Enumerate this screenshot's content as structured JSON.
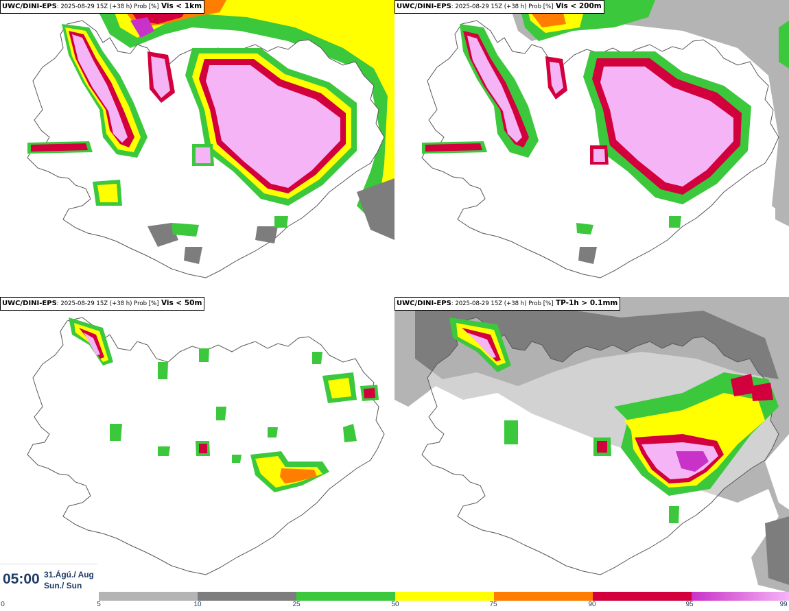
{
  "panels": [
    {
      "model": "UWC/DINI-EPS",
      "meta": ": 2025-08-29 15Z (+38 h) Prob [%]",
      "variable": "Vis < 1km"
    },
    {
      "model": "UWC/DINI-EPS",
      "meta": ": 2025-08-29 15Z (+38 h) Prob [%]",
      "variable": "Vis < 200m"
    },
    {
      "model": "UWC/DINI-EPS",
      "meta": ": 2025-08-29 15Z (+38 h) Prob [%]",
      "variable": "Vis < 50m"
    },
    {
      "model": "UWC/DINI-EPS",
      "meta": ": 2025-08-29 15Z (+38 h) Prob [%]",
      "variable": "TP-1h > 0.1mm"
    }
  ],
  "time": {
    "clock": "05:00",
    "date_line1": "31.Ágú./ Aug",
    "date_line2": "Sun./ Sun"
  },
  "colorbar": {
    "ticks": [
      "0",
      "5",
      "10",
      "25",
      "50",
      "75",
      "90",
      "95",
      "99"
    ],
    "colors": {
      "5-10": "#b4b4b4",
      "10-25": "#7d7d7d",
      "25-50": "#3cc83c",
      "50-75": "#ffff00",
      "75-90": "#ff7d00",
      "90-95": "#d2003c",
      "95-99": "#c832c8",
      "99": "#f5b4f5"
    }
  }
}
